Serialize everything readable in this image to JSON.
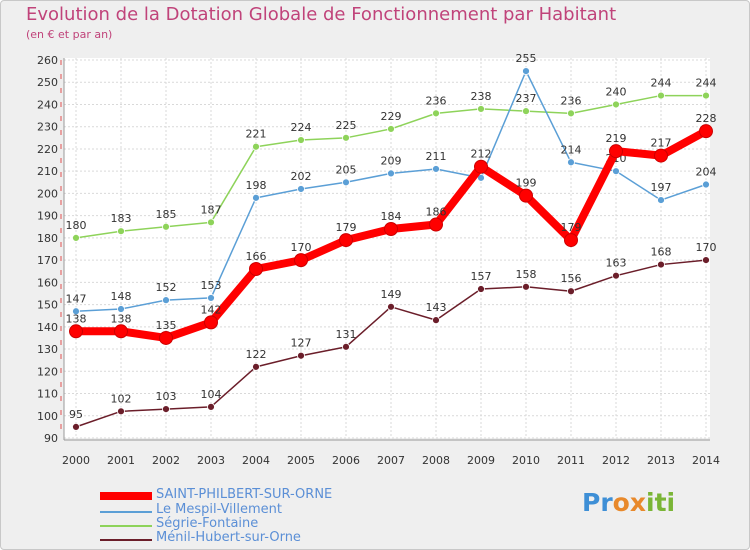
{
  "chart_data": {
    "type": "line",
    "title": "Evolution de la Dotation Globale de Fonctionnement par Habitant",
    "subtitle": "(en € et par an)",
    "x": [
      "2000",
      "2001",
      "2002",
      "2003",
      "2004",
      "2005",
      "2006",
      "2007",
      "2008",
      "2009",
      "2010",
      "2011",
      "2012",
      "2013",
      "2014"
    ],
    "ylim": [
      90,
      260
    ],
    "yticks": [
      90,
      100,
      110,
      120,
      130,
      140,
      150,
      160,
      170,
      180,
      190,
      200,
      210,
      220,
      230,
      240,
      250,
      260
    ],
    "series": [
      {
        "name": "Ségrie-Fontaine",
        "color": "#8ed35a",
        "values": [
          180,
          183,
          185,
          187,
          221,
          224,
          225,
          229,
          236,
          238,
          237,
          236,
          240,
          244,
          244
        ]
      },
      {
        "name": "Le Mespil-Villement",
        "color": "#5b9fd6",
        "values": [
          147,
          148,
          152,
          153,
          198,
          202,
          205,
          209,
          211,
          207,
          255,
          214,
          210,
          197,
          204
        ]
      },
      {
        "name": "Ménil-Hubert-sur-Orne",
        "color": "#6b1e2a",
        "values": [
          95,
          102,
          103,
          104,
          122,
          127,
          131,
          149,
          143,
          157,
          158,
          156,
          163,
          168,
          170
        ]
      },
      {
        "name": "SAINT-PHILBERT-SUR-ORNE",
        "color": "#ff0000",
        "values": [
          138,
          138,
          135,
          142,
          166,
          170,
          179,
          184,
          186,
          212,
          199,
          179,
          219,
          217,
          228
        ]
      }
    ],
    "value_labels": {
      "Ségrie-Fontaine": [
        "180",
        "183",
        "185",
        "187",
        "221",
        "224",
        "225",
        "229",
        "236",
        "238",
        "237",
        "236",
        "240",
        "244",
        "244"
      ],
      "Le Mespil-Villement": [
        "147",
        "148",
        "152",
        "153",
        "198",
        "202",
        "205",
        "209",
        "211",
        "",
        "255",
        "214",
        "210",
        "197",
        "204"
      ],
      "Ménil-Hubert-sur-Orne": [
        "95",
        "102",
        "103",
        "104",
        "122",
        "127",
        "131",
        "149",
        "143",
        "157",
        "158",
        "156",
        "163",
        "168",
        "170"
      ],
      "SAINT-PHILBERT-SUR-ORNE": [
        "138",
        "138",
        "135",
        "142",
        "166",
        "170",
        "179",
        "184",
        "186",
        "212",
        "199",
        "179",
        "219",
        "217",
        "228"
      ]
    },
    "legend": [
      "SAINT-PHILBERT-SUR-ORNE",
      "Le Mespil-Villement",
      "Ségrie-Fontaine",
      "Ménil-Hubert-sur-Orne"
    ]
  },
  "legend": {
    "items": [
      {
        "label": "SAINT-PHILBERT-SUR-ORNE",
        "color": "#ff0000"
      },
      {
        "label": "Le Mespil-Villement",
        "color": "#5b9fd6"
      },
      {
        "label": "Ségrie-Fontaine",
        "color": "#8ed35a"
      },
      {
        "label": "Ménil-Hubert-sur-Orne",
        "color": "#6b1e2a"
      }
    ]
  },
  "logo": {
    "p": "P",
    "r": "r",
    "o": "o",
    "x": "x",
    "i": "i",
    "t": "t",
    "i2": "i"
  }
}
